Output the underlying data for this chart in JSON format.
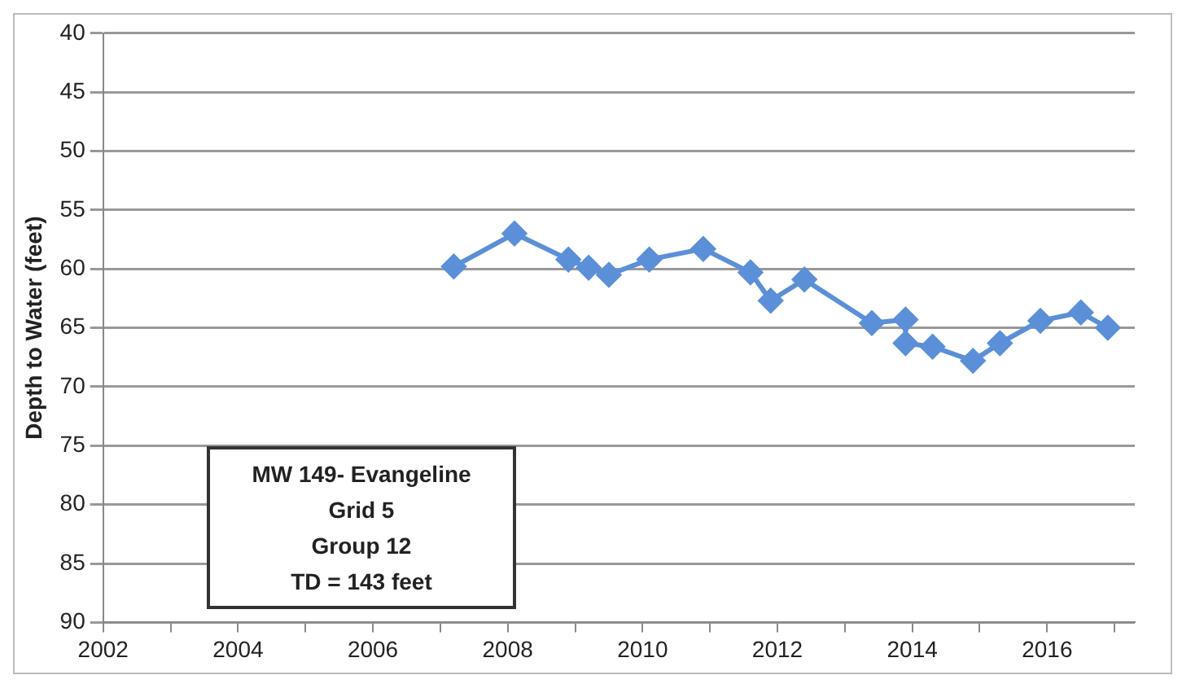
{
  "chart_data": {
    "type": "line",
    "ylabel": "Depth to Water (feet)",
    "annotations": [
      "MW 149- Evangeline\nGrid 5\nGroup 12\nTD = 143 feet"
    ],
    "x": [
      2007.2,
      2008.1,
      2008.9,
      2009.2,
      2009.5,
      2010.1,
      2010.9,
      2011.6,
      2011.9,
      2012.4,
      2013.4,
      2013.9,
      2013.9,
      2014.3,
      2014.9,
      2015.3,
      2015.9,
      2016.5,
      2016.9
    ],
    "series": [
      {
        "color": "#5b8fd8",
        "values": [
          59.8,
          57.0,
          59.2,
          59.9,
          60.5,
          59.2,
          58.3,
          60.3,
          62.7,
          60.9,
          64.6,
          64.3,
          66.3,
          66.6,
          67.8,
          66.3,
          64.4,
          63.7,
          65.0
        ]
      }
    ],
    "xlim": [
      2002,
      2017.3
    ],
    "xticks": [
      2002,
      {
        "value": 2003,
        "label": null
      },
      2004,
      {
        "value": 2005,
        "label": null
      },
      2006,
      {
        "value": 2007,
        "label": null
      },
      2008,
      {
        "value": 2009,
        "label": null
      },
      2010,
      {
        "value": 2011,
        "label": null
      },
      2012,
      {
        "value": 2013,
        "label": null
      },
      2014,
      {
        "value": 2015,
        "label": null
      },
      2016,
      {
        "value": 2017,
        "label": null
      }
    ],
    "ylim": [
      90,
      40
    ],
    "yticks": [
      40,
      45,
      50,
      55,
      60,
      65,
      70,
      75,
      80,
      85,
      90
    ],
    "grid": "y",
    "legend": false,
    "marker": "diamond",
    "line_style": "solid"
  }
}
